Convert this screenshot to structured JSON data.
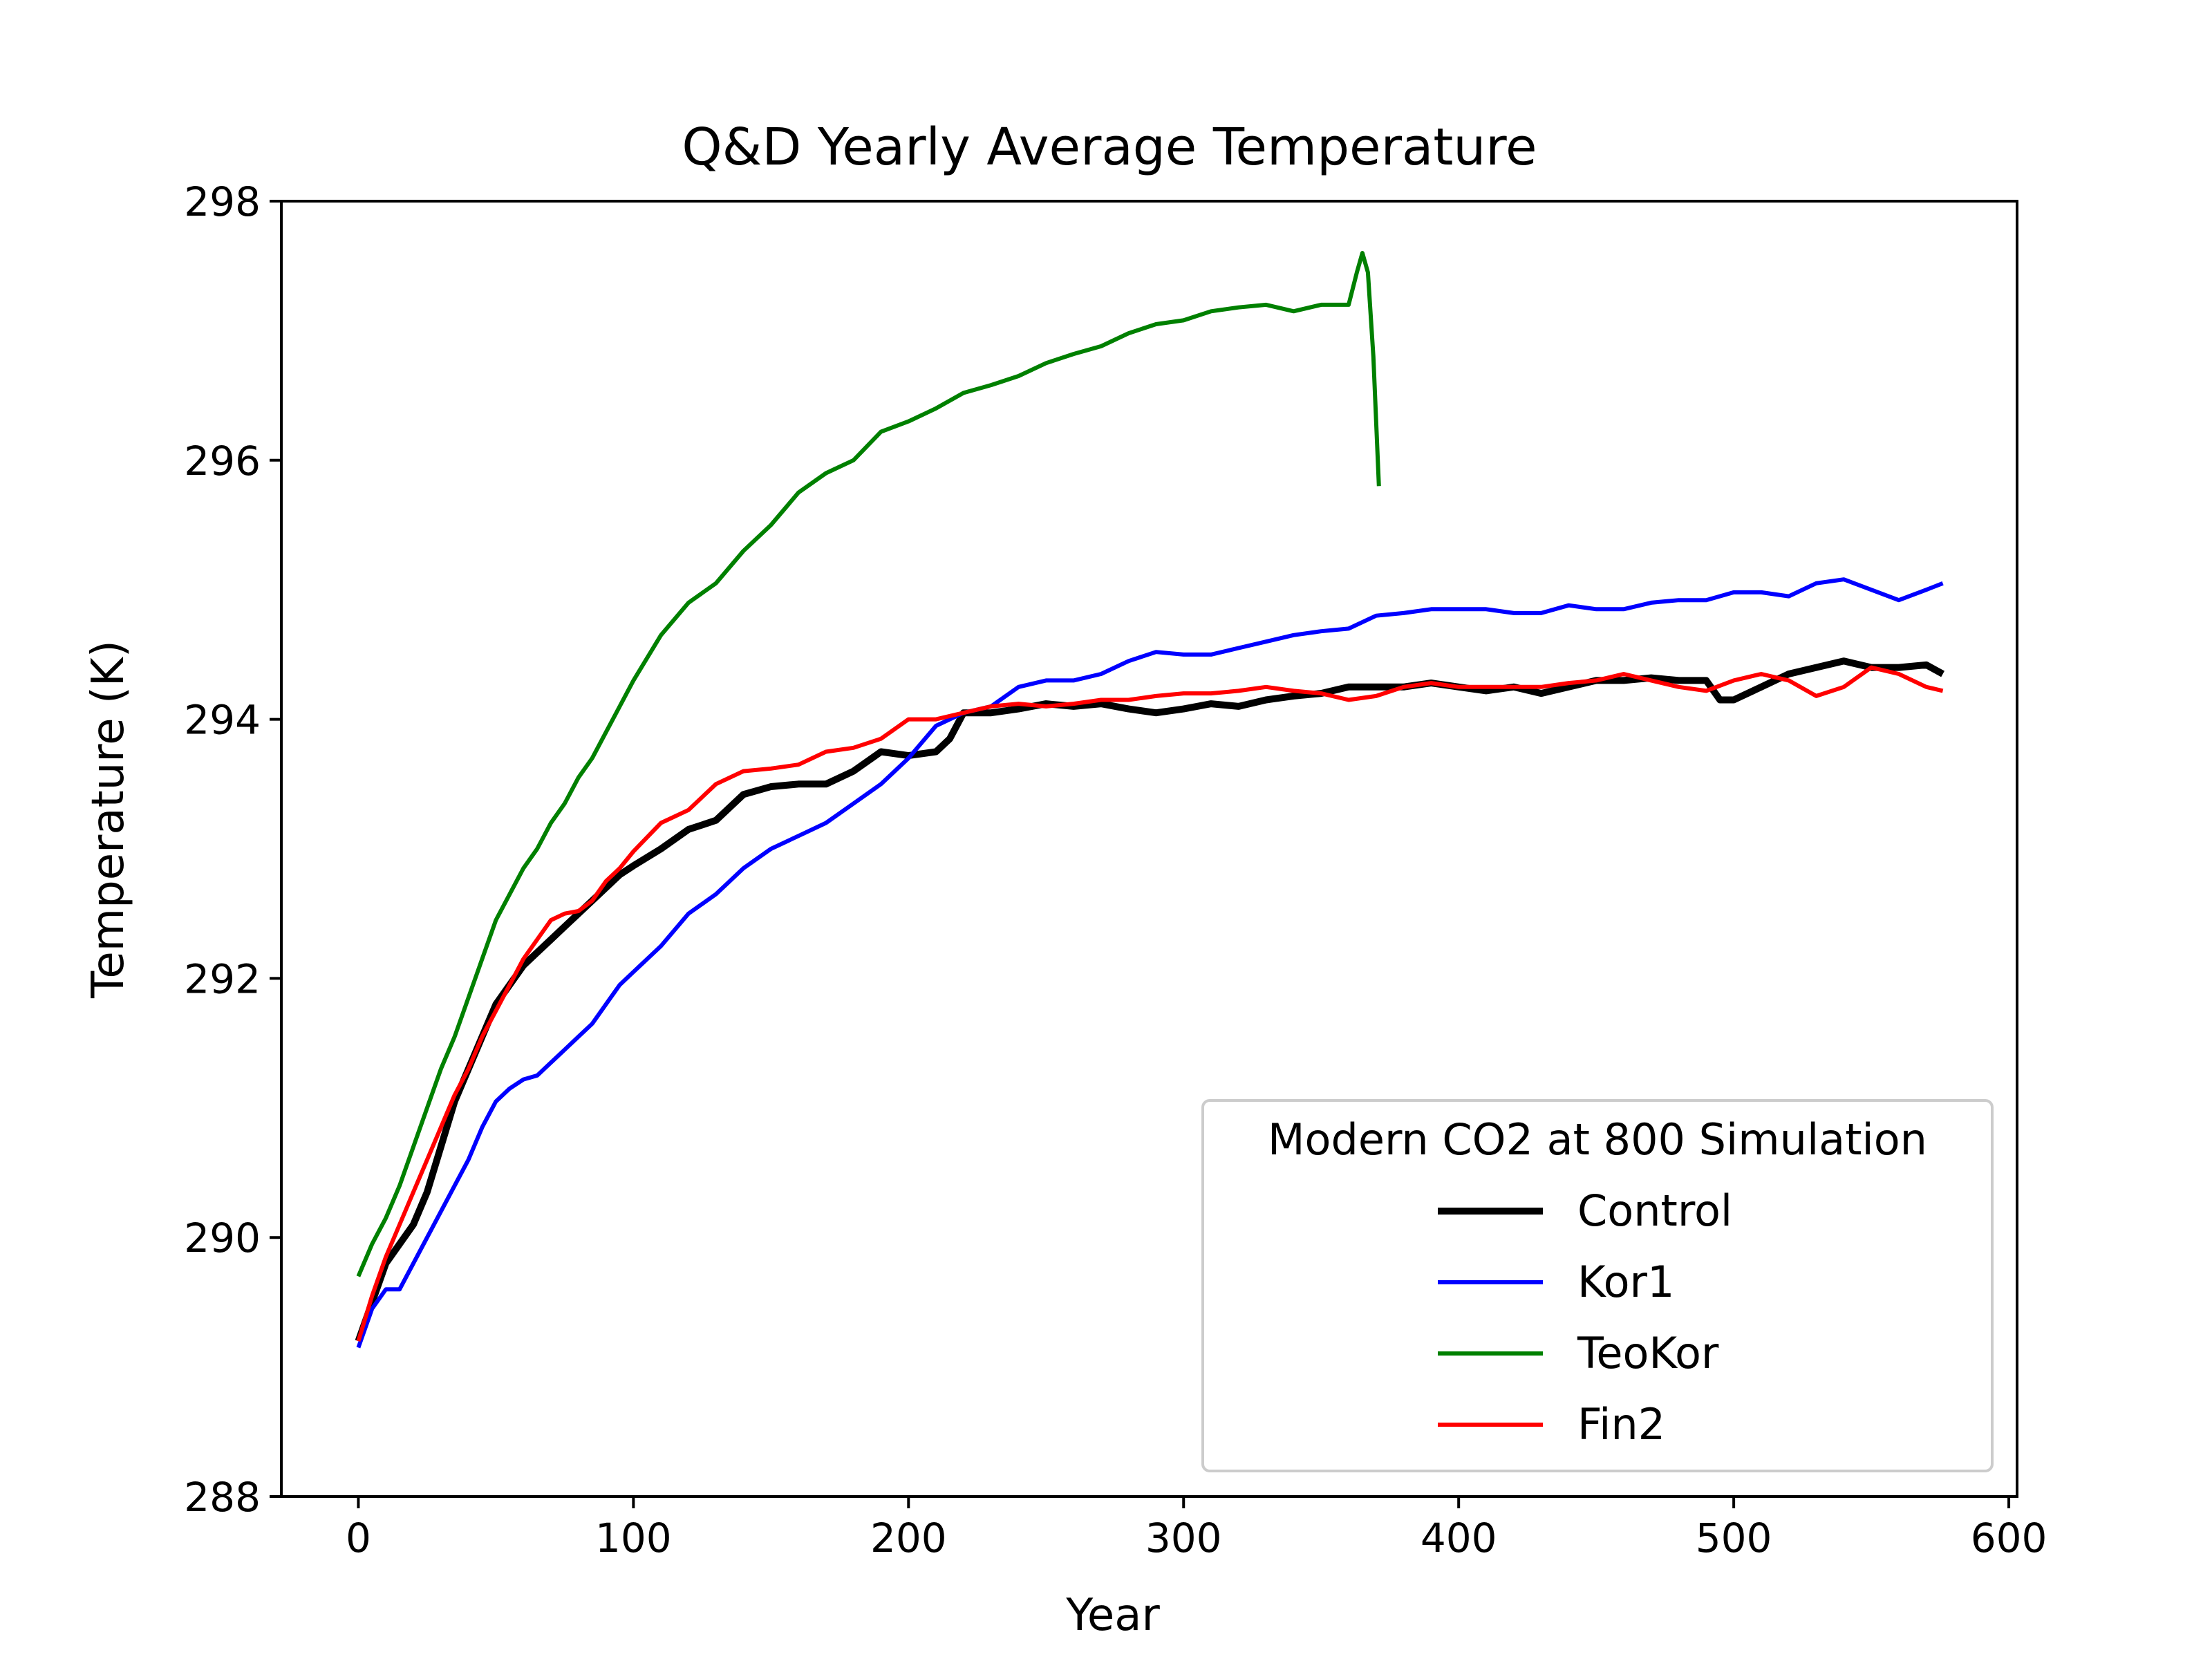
{
  "chart_data": {
    "type": "line",
    "title": "Q&D Yearly Average Temperature",
    "xlabel": "Year",
    "ylabel": "Temperature (K)",
    "xlim": [
      -28,
      603
    ],
    "ylim": [
      288,
      298
    ],
    "xticks": [
      0,
      100,
      200,
      300,
      400,
      500,
      600
    ],
    "yticks": [
      288,
      290,
      292,
      294,
      296,
      298
    ],
    "grid": false,
    "legend": {
      "title": "Modern CO2 at 800 Simulation",
      "position": "lower-right"
    },
    "series": [
      {
        "name": "Control",
        "color": "#000000",
        "points": [
          [
            0,
            289.2
          ],
          [
            5,
            289.5
          ],
          [
            10,
            289.8
          ],
          [
            15,
            289.95
          ],
          [
            20,
            290.1
          ],
          [
            25,
            290.35
          ],
          [
            30,
            290.7
          ],
          [
            35,
            291.05
          ],
          [
            40,
            291.3
          ],
          [
            45,
            291.55
          ],
          [
            50,
            291.8
          ],
          [
            55,
            291.95
          ],
          [
            60,
            292.1
          ],
          [
            65,
            292.2
          ],
          [
            70,
            292.3
          ],
          [
            75,
            292.4
          ],
          [
            80,
            292.5
          ],
          [
            85,
            292.6
          ],
          [
            90,
            292.7
          ],
          [
            95,
            292.8
          ],
          [
            100,
            292.87
          ],
          [
            110,
            293.0
          ],
          [
            120,
            293.15
          ],
          [
            130,
            293.22
          ],
          [
            140,
            293.42
          ],
          [
            150,
            293.48
          ],
          [
            160,
            293.5
          ],
          [
            170,
            293.5
          ],
          [
            180,
            293.6
          ],
          [
            190,
            293.75
          ],
          [
            200,
            293.72
          ],
          [
            210,
            293.75
          ],
          [
            215,
            293.85
          ],
          [
            220,
            294.05
          ],
          [
            230,
            294.05
          ],
          [
            240,
            294.08
          ],
          [
            250,
            294.12
          ],
          [
            260,
            294.1
          ],
          [
            270,
            294.12
          ],
          [
            280,
            294.08
          ],
          [
            290,
            294.05
          ],
          [
            300,
            294.08
          ],
          [
            310,
            294.12
          ],
          [
            320,
            294.1
          ],
          [
            330,
            294.15
          ],
          [
            340,
            294.18
          ],
          [
            350,
            294.2
          ],
          [
            360,
            294.25
          ],
          [
            370,
            294.25
          ],
          [
            380,
            294.25
          ],
          [
            390,
            294.28
          ],
          [
            400,
            294.25
          ],
          [
            410,
            294.22
          ],
          [
            420,
            294.25
          ],
          [
            430,
            294.2
          ],
          [
            440,
            294.25
          ],
          [
            450,
            294.3
          ],
          [
            460,
            294.3
          ],
          [
            470,
            294.32
          ],
          [
            480,
            294.3
          ],
          [
            490,
            294.3
          ],
          [
            495,
            294.15
          ],
          [
            500,
            294.15
          ],
          [
            510,
            294.25
          ],
          [
            520,
            294.35
          ],
          [
            530,
            294.4
          ],
          [
            540,
            294.45
          ],
          [
            550,
            294.4
          ],
          [
            560,
            294.4
          ],
          [
            570,
            294.42
          ],
          [
            576,
            294.35
          ]
        ]
      },
      {
        "name": "Kor1",
        "color": "#0000ff",
        "points": [
          [
            0,
            289.15
          ],
          [
            5,
            289.45
          ],
          [
            10,
            289.6
          ],
          [
            15,
            289.6
          ],
          [
            20,
            289.8
          ],
          [
            25,
            290.0
          ],
          [
            30,
            290.2
          ],
          [
            35,
            290.4
          ],
          [
            40,
            290.6
          ],
          [
            45,
            290.85
          ],
          [
            50,
            291.05
          ],
          [
            55,
            291.15
          ],
          [
            60,
            291.22
          ],
          [
            65,
            291.25
          ],
          [
            70,
            291.35
          ],
          [
            75,
            291.45
          ],
          [
            80,
            291.55
          ],
          [
            85,
            291.65
          ],
          [
            90,
            291.8
          ],
          [
            95,
            291.95
          ],
          [
            100,
            292.05
          ],
          [
            110,
            292.25
          ],
          [
            120,
            292.5
          ],
          [
            130,
            292.65
          ],
          [
            140,
            292.85
          ],
          [
            150,
            293.0
          ],
          [
            160,
            293.1
          ],
          [
            170,
            293.2
          ],
          [
            180,
            293.35
          ],
          [
            190,
            293.5
          ],
          [
            200,
            293.7
          ],
          [
            210,
            293.95
          ],
          [
            220,
            294.05
          ],
          [
            230,
            294.1
          ],
          [
            240,
            294.25
          ],
          [
            250,
            294.3
          ],
          [
            260,
            294.3
          ],
          [
            270,
            294.35
          ],
          [
            280,
            294.45
          ],
          [
            290,
            294.52
          ],
          [
            300,
            294.5
          ],
          [
            310,
            294.5
          ],
          [
            320,
            294.55
          ],
          [
            330,
            294.6
          ],
          [
            340,
            294.65
          ],
          [
            350,
            294.68
          ],
          [
            360,
            294.7
          ],
          [
            370,
            294.8
          ],
          [
            380,
            294.82
          ],
          [
            390,
            294.85
          ],
          [
            400,
            294.85
          ],
          [
            410,
            294.85
          ],
          [
            420,
            294.82
          ],
          [
            430,
            294.82
          ],
          [
            440,
            294.88
          ],
          [
            450,
            294.85
          ],
          [
            460,
            294.85
          ],
          [
            470,
            294.9
          ],
          [
            480,
            294.92
          ],
          [
            490,
            294.92
          ],
          [
            500,
            294.98
          ],
          [
            510,
            294.98
          ],
          [
            520,
            294.95
          ],
          [
            530,
            295.05
          ],
          [
            540,
            295.08
          ],
          [
            550,
            295.0
          ],
          [
            560,
            294.92
          ],
          [
            570,
            295.0
          ],
          [
            576,
            295.05
          ]
        ]
      },
      {
        "name": "TeoKor",
        "color": "#008000",
        "points": [
          [
            0,
            289.7
          ],
          [
            5,
            289.95
          ],
          [
            10,
            290.15
          ],
          [
            15,
            290.4
          ],
          [
            20,
            290.7
          ],
          [
            25,
            291.0
          ],
          [
            30,
            291.3
          ],
          [
            35,
            291.55
          ],
          [
            40,
            291.85
          ],
          [
            45,
            292.15
          ],
          [
            50,
            292.45
          ],
          [
            55,
            292.65
          ],
          [
            60,
            292.85
          ],
          [
            65,
            293.0
          ],
          [
            70,
            293.2
          ],
          [
            75,
            293.35
          ],
          [
            80,
            293.55
          ],
          [
            85,
            293.7
          ],
          [
            90,
            293.9
          ],
          [
            95,
            294.1
          ],
          [
            100,
            294.3
          ],
          [
            110,
            294.65
          ],
          [
            120,
            294.9
          ],
          [
            130,
            295.05
          ],
          [
            140,
            295.3
          ],
          [
            150,
            295.5
          ],
          [
            160,
            295.75
          ],
          [
            170,
            295.9
          ],
          [
            180,
            296.0
          ],
          [
            190,
            296.22
          ],
          [
            200,
            296.3
          ],
          [
            210,
            296.4
          ],
          [
            220,
            296.52
          ],
          [
            230,
            296.58
          ],
          [
            240,
            296.65
          ],
          [
            250,
            296.75
          ],
          [
            260,
            296.82
          ],
          [
            270,
            296.88
          ],
          [
            280,
            296.98
          ],
          [
            290,
            297.05
          ],
          [
            300,
            297.08
          ],
          [
            310,
            297.15
          ],
          [
            320,
            297.18
          ],
          [
            330,
            297.2
          ],
          [
            340,
            297.15
          ],
          [
            350,
            297.2
          ],
          [
            360,
            297.2
          ],
          [
            363,
            297.45
          ],
          [
            365,
            297.6
          ],
          [
            367,
            297.45
          ],
          [
            369,
            296.8
          ],
          [
            371,
            295.8
          ]
        ]
      },
      {
        "name": "Fin2",
        "color": "#ff0000",
        "points": [
          [
            0,
            289.2
          ],
          [
            5,
            289.55
          ],
          [
            10,
            289.85
          ],
          [
            15,
            290.1
          ],
          [
            20,
            290.35
          ],
          [
            25,
            290.6
          ],
          [
            30,
            290.85
          ],
          [
            35,
            291.1
          ],
          [
            40,
            291.3
          ],
          [
            45,
            291.55
          ],
          [
            50,
            291.75
          ],
          [
            55,
            291.95
          ],
          [
            60,
            292.15
          ],
          [
            65,
            292.3
          ],
          [
            70,
            292.45
          ],
          [
            75,
            292.5
          ],
          [
            80,
            292.52
          ],
          [
            85,
            292.6
          ],
          [
            90,
            292.75
          ],
          [
            95,
            292.85
          ],
          [
            100,
            292.98
          ],
          [
            110,
            293.2
          ],
          [
            120,
            293.3
          ],
          [
            130,
            293.5
          ],
          [
            140,
            293.6
          ],
          [
            150,
            293.62
          ],
          [
            160,
            293.65
          ],
          [
            170,
            293.75
          ],
          [
            180,
            293.78
          ],
          [
            190,
            293.85
          ],
          [
            200,
            294.0
          ],
          [
            210,
            294.0
          ],
          [
            220,
            294.05
          ],
          [
            230,
            294.1
          ],
          [
            240,
            294.12
          ],
          [
            250,
            294.1
          ],
          [
            260,
            294.12
          ],
          [
            270,
            294.15
          ],
          [
            280,
            294.15
          ],
          [
            290,
            294.18
          ],
          [
            300,
            294.2
          ],
          [
            310,
            294.2
          ],
          [
            320,
            294.22
          ],
          [
            330,
            294.25
          ],
          [
            340,
            294.22
          ],
          [
            350,
            294.2
          ],
          [
            360,
            294.15
          ],
          [
            370,
            294.18
          ],
          [
            380,
            294.25
          ],
          [
            390,
            294.28
          ],
          [
            400,
            294.25
          ],
          [
            410,
            294.25
          ],
          [
            420,
            294.25
          ],
          [
            430,
            294.25
          ],
          [
            440,
            294.28
          ],
          [
            450,
            294.3
          ],
          [
            460,
            294.35
          ],
          [
            470,
            294.3
          ],
          [
            480,
            294.25
          ],
          [
            490,
            294.22
          ],
          [
            500,
            294.3
          ],
          [
            510,
            294.35
          ],
          [
            520,
            294.3
          ],
          [
            530,
            294.18
          ],
          [
            540,
            294.25
          ],
          [
            550,
            294.4
          ],
          [
            560,
            294.35
          ],
          [
            570,
            294.25
          ],
          [
            576,
            294.22
          ]
        ]
      }
    ]
  }
}
